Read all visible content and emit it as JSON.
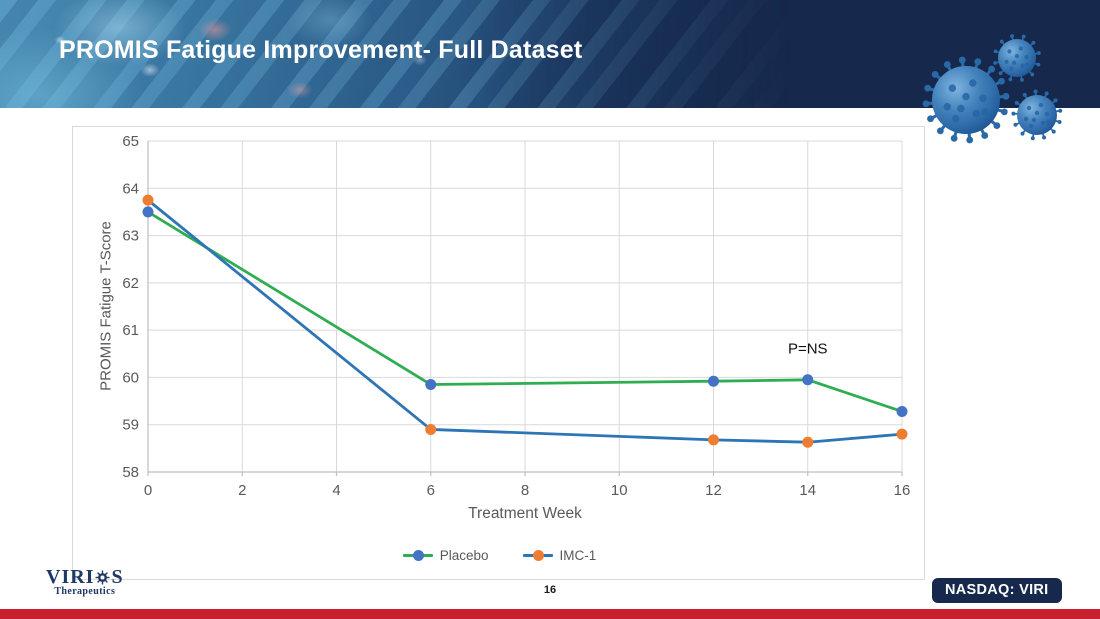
{
  "slide": {
    "title": "PROMIS Fatigue Improvement- Full Dataset",
    "page_number": "16",
    "ticker_badge": "NASDAQ: VIRI",
    "logo": {
      "brand_pre": "VIRI",
      "brand_post": "S",
      "subtitle": "Therapeutics"
    }
  },
  "colors": {
    "header_navy": "#16294c",
    "accent_red": "#c8202f",
    "gridline": "#d9d9d9",
    "axis_line": "#bfbfbf",
    "axis_text": "#595959"
  },
  "chart_data": {
    "type": "line",
    "title": "",
    "xlabel": "Treatment Week",
    "ylabel": "PROMIS Fatigue T-Score",
    "xlim": [
      0,
      16
    ],
    "ylim": [
      58,
      65
    ],
    "x_ticks": [
      0,
      2,
      4,
      6,
      8,
      10,
      12,
      14,
      16
    ],
    "y_ticks": [
      58,
      59,
      60,
      61,
      62,
      63,
      64,
      65
    ],
    "grid": true,
    "legend_position": "bottom",
    "annotation": {
      "text": "P=NS",
      "x": 14,
      "y": 60.6
    },
    "x": [
      0,
      6,
      12,
      14,
      16
    ],
    "series": [
      {
        "name": "Placebo",
        "line_color": "#2fad53",
        "marker_color": "#4472c4",
        "values": [
          63.5,
          59.85,
          59.92,
          59.95,
          59.28
        ]
      },
      {
        "name": "IMC-1",
        "line_color": "#2e75b6",
        "marker_color": "#ed7d31",
        "values": [
          63.75,
          58.9,
          58.68,
          58.63,
          58.8
        ]
      }
    ]
  }
}
